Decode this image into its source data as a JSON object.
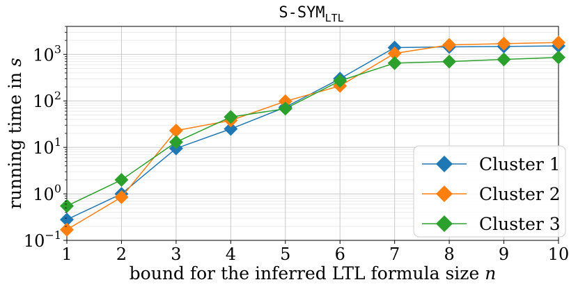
{
  "chart_data": {
    "type": "line",
    "title_main": "S-SYM",
    "title_sub": "LTL",
    "xlabel_prefix": "bound for the inferred LTL formula size ",
    "xlabel_var": "n",
    "ylabel_prefix": "running time in ",
    "ylabel_var": "s",
    "x": [
      1,
      2,
      3,
      4,
      5,
      6,
      7,
      8,
      9,
      10
    ],
    "xlim": [
      1,
      10
    ],
    "ylim": [
      0.1,
      4000
    ],
    "yscale": "log",
    "x_ticks": [
      "1",
      "2",
      "3",
      "4",
      "5",
      "6",
      "7",
      "8",
      "9",
      "10"
    ],
    "y_ticks": [
      {
        "base": "10",
        "exp": "−1",
        "value": 0.1
      },
      {
        "base": "10",
        "exp": "0",
        "value": 1
      },
      {
        "base": "10",
        "exp": "1",
        "value": 10
      },
      {
        "base": "10",
        "exp": "2",
        "value": 100
      },
      {
        "base": "10",
        "exp": "3",
        "value": 1000
      }
    ],
    "grid": true,
    "legend_position": "bottom-right",
    "series": [
      {
        "name": "Cluster 1",
        "color": "#1f77b4",
        "values": [
          0.28,
          1.0,
          9.5,
          25,
          73,
          300,
          1400,
          1450,
          1480,
          1520
        ]
      },
      {
        "name": "Cluster 2",
        "color": "#ff7f0e",
        "values": [
          0.17,
          0.85,
          23,
          38,
          98,
          210,
          1050,
          1600,
          1700,
          1800
        ]
      },
      {
        "name": "Cluster 3",
        "color": "#2ca02c",
        "values": [
          0.55,
          2.0,
          13,
          45,
          68,
          270,
          650,
          700,
          780,
          860
        ]
      }
    ]
  }
}
